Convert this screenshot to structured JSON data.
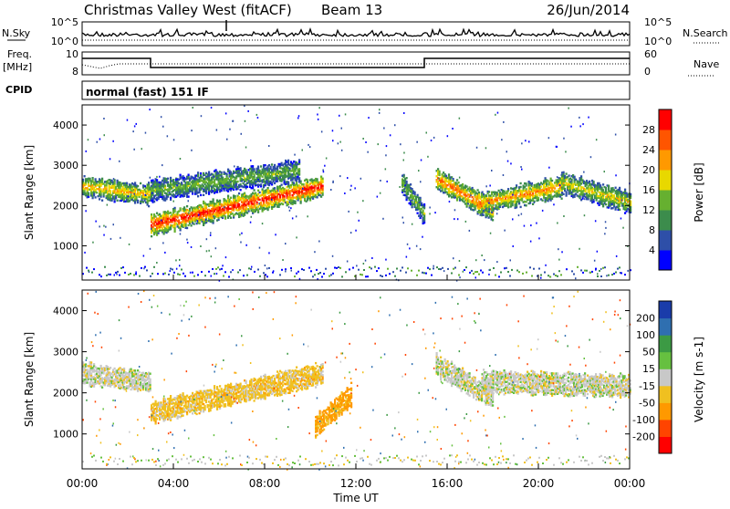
{
  "header": {
    "title": "Christmas Valley West (fitACF)",
    "beam": "Beam 13",
    "date": "26/Jun/2014"
  },
  "nsky_panel": {
    "left_label": "N.Sky",
    "right_label": "N.Search",
    "y_ticks_left": [
      "10^5",
      "10^0"
    ],
    "y_ticks_right": [
      "10^5",
      "10^0"
    ]
  },
  "freq_panel": {
    "left_label_1": "Freq.",
    "left_label_2": "[MHz]",
    "right_label": "Nave",
    "y_ticks_left": [
      "10",
      "8"
    ],
    "y_ticks_right": [
      "60",
      "0"
    ]
  },
  "cpid_panel": {
    "left_label": "CPID",
    "value": "normal (fast) 151 IF"
  },
  "power_panel": {
    "ylabel": "Slant Range [km]",
    "y_ticks": [
      "4000",
      "3000",
      "2000",
      "1000"
    ],
    "colorbar_label": "Power [dB]",
    "colorbar_ticks": [
      "28",
      "24",
      "20",
      "16",
      "12",
      "8",
      "4"
    ],
    "colors": [
      "#0000ff",
      "#2e4fa8",
      "#3c8c4c",
      "#66b030",
      "#e8d800",
      "#ff9900",
      "#ff5500",
      "#ff0000"
    ]
  },
  "velocity_panel": {
    "ylabel": "Slant Range [km]",
    "y_ticks": [
      "4000",
      "3000",
      "2000",
      "1000"
    ],
    "colorbar_label": "Velocity [m s-1]",
    "colorbar_ticks": [
      "200",
      "100",
      "50",
      "15",
      "-15",
      "-50",
      "-100",
      "-200"
    ],
    "colors": [
      "#1a3caa",
      "#2f6fb0",
      "#3c9a44",
      "#66c040",
      "#c8c8c8",
      "#f0c020",
      "#ff9900",
      "#ff4400",
      "#ff0000"
    ]
  },
  "x_axis": {
    "label": "Time UT",
    "ticks": [
      "00:00",
      "04:00",
      "08:00",
      "12:00",
      "16:00",
      "20:00",
      "00:00"
    ]
  },
  "chart_data": [
    {
      "type": "heatmap",
      "title": "Power",
      "xlabel": "Time UT",
      "ylabel": "Slant Range [km]",
      "xlim": [
        0,
        24
      ],
      "ylim": [
        150,
        4500
      ],
      "colorbar": "Power [dB]",
      "clim": [
        0,
        30
      ],
      "echo_bands": [
        {
          "t_start": 0.0,
          "t_end": 3.0,
          "range_start": 2500,
          "range_end": 2300,
          "power": 18
        },
        {
          "t_start": 3.0,
          "t_end": 10.5,
          "range_start": 1550,
          "range_end": 2500,
          "power": 26
        },
        {
          "t_start": 3.0,
          "t_end": 9.5,
          "range_start": 2400,
          "range_end": 2900,
          "power": 12
        },
        {
          "t_start": 14.0,
          "t_end": 15.0,
          "range_start": 2600,
          "range_end": 1800,
          "power": 12
        },
        {
          "t_start": 15.5,
          "t_end": 18.0,
          "range_start": 2700,
          "range_end": 1900,
          "power": 22
        },
        {
          "t_start": 17.5,
          "t_end": 21.0,
          "range_start": 2100,
          "range_end": 2500,
          "power": 20
        },
        {
          "t_start": 21.0,
          "t_end": 24.0,
          "range_start": 2600,
          "range_end": 2100,
          "power": 16
        }
      ]
    },
    {
      "type": "heatmap",
      "title": "Velocity",
      "xlabel": "Time UT",
      "ylabel": "Slant Range [km]",
      "xlim": [
        0,
        24
      ],
      "ylim": [
        150,
        4500
      ],
      "colorbar": "Velocity [m s-1]",
      "clim": [
        -200,
        200
      ],
      "echo_bands": [
        {
          "t_start": 0.0,
          "t_end": 3.0,
          "range_start": 2500,
          "range_end": 2300,
          "velocity": 0
        },
        {
          "t_start": 3.0,
          "t_end": 10.5,
          "range_start": 1550,
          "range_end": 2500,
          "velocity": -30
        },
        {
          "t_start": 10.2,
          "t_end": 11.8,
          "range_start": 1200,
          "range_end": 2000,
          "velocity": -60
        },
        {
          "t_start": 15.5,
          "t_end": 18.0,
          "range_start": 2700,
          "range_end": 1900,
          "velocity": 0
        },
        {
          "t_start": 17.5,
          "t_end": 24.0,
          "range_start": 2300,
          "range_end": 2200,
          "velocity": 0
        }
      ]
    }
  ]
}
